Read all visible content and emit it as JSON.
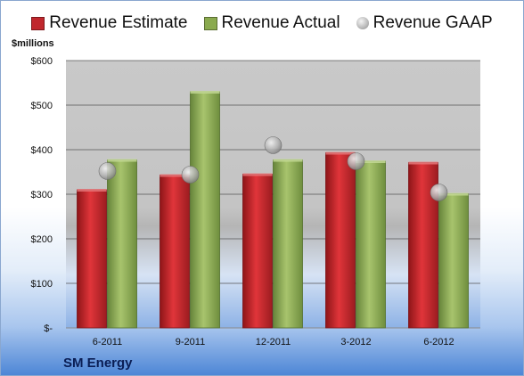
{
  "chart_data": {
    "type": "bar",
    "company": "SM Energy",
    "ylabel": "$millions",
    "categories": [
      "6-2011",
      "9-2011",
      "12-2011",
      "3-2012",
      "6-2012"
    ],
    "ylim": [
      0,
      600
    ],
    "yticks": [
      0,
      100,
      200,
      300,
      400,
      500,
      600
    ],
    "ytick_labels": [
      "$-",
      "$100",
      "$200",
      "$300",
      "$400",
      "$500",
      "$600"
    ],
    "grid": true,
    "legend_position": "top",
    "series": [
      {
        "name": "Revenue Estimate",
        "kind": "bar",
        "color": "#c0272d",
        "values": [
          310,
          343,
          345,
          393,
          371
        ]
      },
      {
        "name": "Revenue Actual",
        "kind": "bar",
        "color": "#8aaa4e",
        "values": [
          377,
          530,
          377,
          374,
          301
        ]
      },
      {
        "name": "Revenue GAAP",
        "kind": "marker",
        "color": "#b9b9b9",
        "values": [
          352,
          344,
          410,
          374,
          304
        ]
      }
    ]
  }
}
